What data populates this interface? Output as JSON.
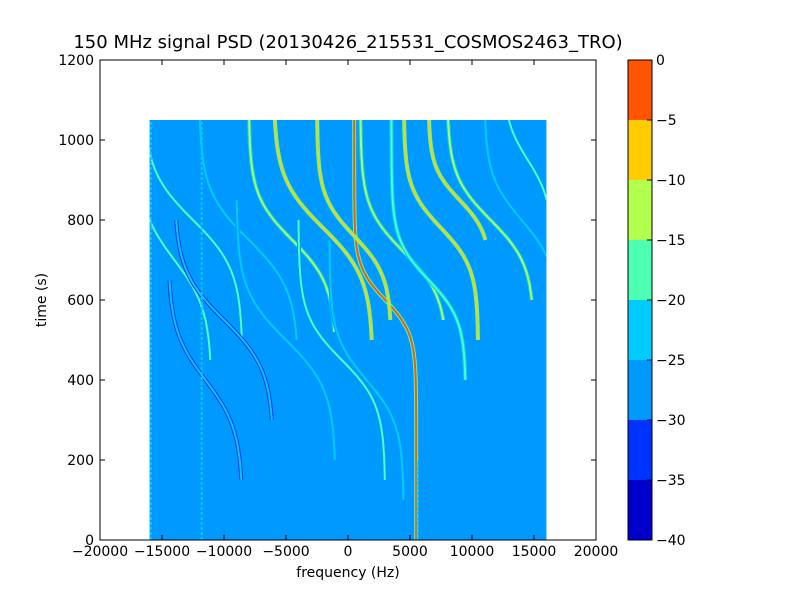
{
  "chart_data": {
    "type": "heatmap",
    "title": "150 MHz signal PSD (20130426_215531_COSMOS2463_TRO)",
    "xlabel": "frequency (Hz)",
    "ylabel": "time (s)",
    "xlim": [
      -20000,
      20000
    ],
    "ylim": [
      0,
      1200
    ],
    "xticks": [
      -20000,
      -15000,
      -10000,
      -5000,
      0,
      5000,
      10000,
      15000,
      20000
    ],
    "yticks": [
      0,
      200,
      400,
      600,
      800,
      1000,
      1200
    ],
    "xtick_labels": [
      "−20000",
      "−15000",
      "−10000",
      "−5000",
      "0",
      "5000",
      "10000",
      "15000",
      "20000"
    ],
    "ytick_labels": [
      "0",
      "200",
      "400",
      "600",
      "800",
      "1000",
      "1200"
    ],
    "data_extent": {
      "x": [
        -16000,
        16000
      ],
      "y": [
        0,
        1050
      ]
    },
    "background_level": -27.5,
    "colorbar": {
      "levels": [
        -40,
        -35,
        -30,
        -25,
        -20,
        -15,
        -10,
        -5,
        0
      ],
      "tick_labels": [
        "−40",
        "−35",
        "−30",
        "−25",
        "−20",
        "−15",
        "−10",
        "−5",
        "0"
      ],
      "colors": [
        "#0000cc",
        "#0033ff",
        "#0099ff",
        "#00ccff",
        "#4dffb3",
        "#b3ff4d",
        "#ffcc00",
        "#ff5500",
        "#cc0000"
      ]
    },
    "traces": [
      {
        "f0": 3000,
        "t0": 600,
        "w": 2500,
        "k": 0.012,
        "tmin": 0,
        "tmax": 1050,
        "level": -3
      },
      {
        "f0": -2000,
        "t0": 780,
        "w": 4000,
        "k": 0.008,
        "tmin": 500,
        "tmax": 1050,
        "level": -7
      },
      {
        "f0": 500,
        "t0": 760,
        "w": 3000,
        "k": 0.01,
        "tmin": 550,
        "tmax": 1050,
        "level": -6
      },
      {
        "f0": 7500,
        "t0": 780,
        "w": 3000,
        "k": 0.01,
        "tmin": 500,
        "tmax": 1050,
        "level": -7
      },
      {
        "f0": 9000,
        "t0": 850,
        "w": 2500,
        "k": 0.012,
        "tmin": 750,
        "tmax": 1050,
        "level": -8
      },
      {
        "f0": -4500,
        "t0": 750,
        "w": 3500,
        "k": 0.009,
        "tmin": 520,
        "tmax": 1050,
        "level": -13
      },
      {
        "f0": 4500,
        "t0": 720,
        "w": 3500,
        "k": 0.009,
        "tmin": 550,
        "tmax": 1050,
        "level": -13
      },
      {
        "f0": 11500,
        "t0": 800,
        "w": 3500,
        "k": 0.009,
        "tmin": 600,
        "tmax": 1050,
        "level": -13
      },
      {
        "f0": -12500,
        "t0": 800,
        "w": 4000,
        "k": 0.008,
        "tmin": 500,
        "tmax": 1050,
        "level": -18
      },
      {
        "f0": -14000,
        "t0": 700,
        "w": 3000,
        "k": 0.008,
        "tmin": 450,
        "tmax": 950,
        "level": -20
      },
      {
        "f0": -8000,
        "t0": 750,
        "w": 4000,
        "k": 0.008,
        "tmin": 500,
        "tmax": 1050,
        "level": -22
      },
      {
        "f0": -5000,
        "t0": 500,
        "w": 4000,
        "k": 0.008,
        "tmin": 200,
        "tmax": 850,
        "level": -22
      },
      {
        "f0": -500,
        "t0": 450,
        "w": 3500,
        "k": 0.009,
        "tmin": 150,
        "tmax": 800,
        "level": -20
      },
      {
        "f0": 1500,
        "t0": 400,
        "w": 3000,
        "k": 0.009,
        "tmin": 100,
        "tmax": 750,
        "level": -22
      },
      {
        "f0": 6500,
        "t0": 650,
        "w": 3000,
        "k": 0.01,
        "tmin": 400,
        "tmax": 1050,
        "level": -16
      },
      {
        "f0": 14000,
        "t0": 800,
        "w": 3000,
        "k": 0.009,
        "tmin": 600,
        "tmax": 1050,
        "level": -22
      },
      {
        "f0": 14500,
        "t0": 950,
        "w": 2000,
        "k": 0.01,
        "tmin": 850,
        "tmax": 1050,
        "level": -18
      },
      {
        "f0": -10000,
        "t0": 550,
        "w": 4000,
        "k": 0.008,
        "tmin": 300,
        "tmax": 800,
        "level": -24
      },
      {
        "f0": -11500,
        "t0": 400,
        "w": 3000,
        "k": 0.008,
        "tmin": 150,
        "tmax": 650,
        "level": -24
      }
    ],
    "vertical_lines": [
      {
        "f": -15900,
        "tmin": 0,
        "tmax": 1050,
        "level": -22
      },
      {
        "f": -11800,
        "tmin": 0,
        "tmax": 1050,
        "level": -22
      },
      {
        "f": 5600,
        "tmin": 0,
        "tmax": 200,
        "level": -22
      }
    ]
  }
}
